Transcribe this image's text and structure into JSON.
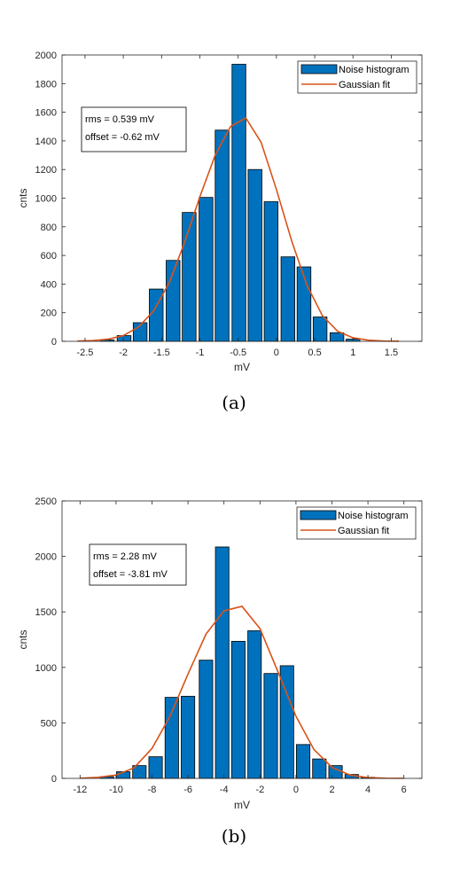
{
  "captions": [
    "(a)",
    "(b)"
  ],
  "colors": {
    "bar_fill": "#0072BD",
    "bar_edge": "#000000",
    "fit_line": "#D95319",
    "axis": "#262626"
  },
  "chart_data": [
    {
      "type": "bar",
      "title": "",
      "xlabel": "mV",
      "ylabel": "cnts",
      "xlim": [
        -2.8,
        1.9
      ],
      "ylim": [
        0,
        2000
      ],
      "xticks": [
        "-2.5",
        "-2",
        "-1.5",
        "-1",
        "-0.5",
        "0",
        "0.5",
        "1",
        "1.5"
      ],
      "xtick_values": [
        -2.5,
        -2,
        -1.5,
        -1,
        -0.5,
        0,
        0.5,
        1,
        1.5
      ],
      "yticks": [
        "0",
        "200",
        "400",
        "600",
        "800",
        "1000",
        "1200",
        "1400",
        "1600",
        "1800",
        "2000"
      ],
      "ytick_values": [
        0,
        200,
        400,
        600,
        800,
        1000,
        1200,
        1400,
        1600,
        1800,
        2000
      ],
      "grid": false,
      "bar_width": 0.18,
      "bars": {
        "x": [
          -2.21,
          -1.99,
          -1.78,
          -1.57,
          -1.35,
          -1.14,
          -0.92,
          -0.71,
          -0.49,
          -0.28,
          -0.07,
          0.15,
          0.36,
          0.57,
          0.79,
          1.0
        ],
        "values": [
          10,
          40,
          130,
          365,
          565,
          900,
          1005,
          1475,
          1935,
          1200,
          975,
          590,
          520,
          170,
          60,
          15
        ]
      },
      "series": [
        {
          "name": "Noise histogram"
        },
        {
          "name": "Gaussian fit",
          "x": [
            -2.6,
            -2.4,
            -2.2,
            -2.0,
            -1.8,
            -1.6,
            -1.4,
            -1.2,
            -1.0,
            -0.8,
            -0.6,
            -0.4,
            -0.2,
            0.0,
            0.2,
            0.4,
            0.6,
            0.8,
            1.0,
            1.2,
            1.4,
            1.6
          ],
          "values": [
            2,
            5,
            15,
            40,
            100,
            215,
            410,
            690,
            1010,
            1300,
            1500,
            1560,
            1390,
            1060,
            700,
            390,
            180,
            70,
            25,
            8,
            2,
            1
          ]
        }
      ],
      "legend": {
        "placement": "top-right",
        "entries": [
          "Noise histogram",
          "Gaussian fit"
        ]
      },
      "annotation": [
        "rms = 0.539 mV",
        "offset = -0.62 mV"
      ]
    },
    {
      "type": "bar",
      "title": "",
      "xlabel": "mV",
      "ylabel": "cnts",
      "xlim": [
        -13,
        7
      ],
      "ylim": [
        0,
        2500
      ],
      "xticks": [
        "-12",
        "-10",
        "-8",
        "-6",
        "-4",
        "-2",
        "0",
        "2",
        "4",
        "6"
      ],
      "xtick_values": [
        -12,
        -10,
        -8,
        -6,
        -4,
        -2,
        0,
        2,
        4,
        6
      ],
      "yticks": [
        "0",
        "500",
        "1000",
        "1500",
        "2000",
        "2500"
      ],
      "ytick_values": [
        0,
        500,
        1000,
        1500,
        2000,
        2500
      ],
      "grid": false,
      "bar_width": 0.75,
      "bars": {
        "x": [
          -10.5,
          -9.6,
          -8.7,
          -7.8,
          -6.9,
          -6.0,
          -5.0,
          -4.1,
          -3.2,
          -2.3,
          -1.4,
          -0.5,
          0.4,
          1.3,
          2.2,
          3.1,
          4.0
        ],
        "values": [
          15,
          60,
          115,
          195,
          730,
          740,
          1065,
          2085,
          1235,
          1330,
          945,
          1015,
          305,
          175,
          115,
          35,
          10
        ]
      },
      "series": [
        {
          "name": "Noise histogram"
        },
        {
          "name": "Gaussian fit",
          "x": [
            -12,
            -11,
            -10,
            -9,
            -8,
            -7,
            -6,
            -5,
            -4,
            -3,
            -2,
            -1,
            0,
            1,
            2,
            3,
            4,
            5,
            6
          ],
          "values": [
            2,
            10,
            30,
            95,
            270,
            560,
            940,
            1300,
            1510,
            1550,
            1350,
            960,
            560,
            260,
            100,
            30,
            8,
            2,
            1
          ]
        }
      ],
      "legend": {
        "placement": "top-right",
        "entries": [
          "Noise histogram",
          "Gaussian fit"
        ]
      },
      "annotation": [
        "rms = 2.28 mV",
        "offset = -3.81 mV"
      ]
    }
  ]
}
